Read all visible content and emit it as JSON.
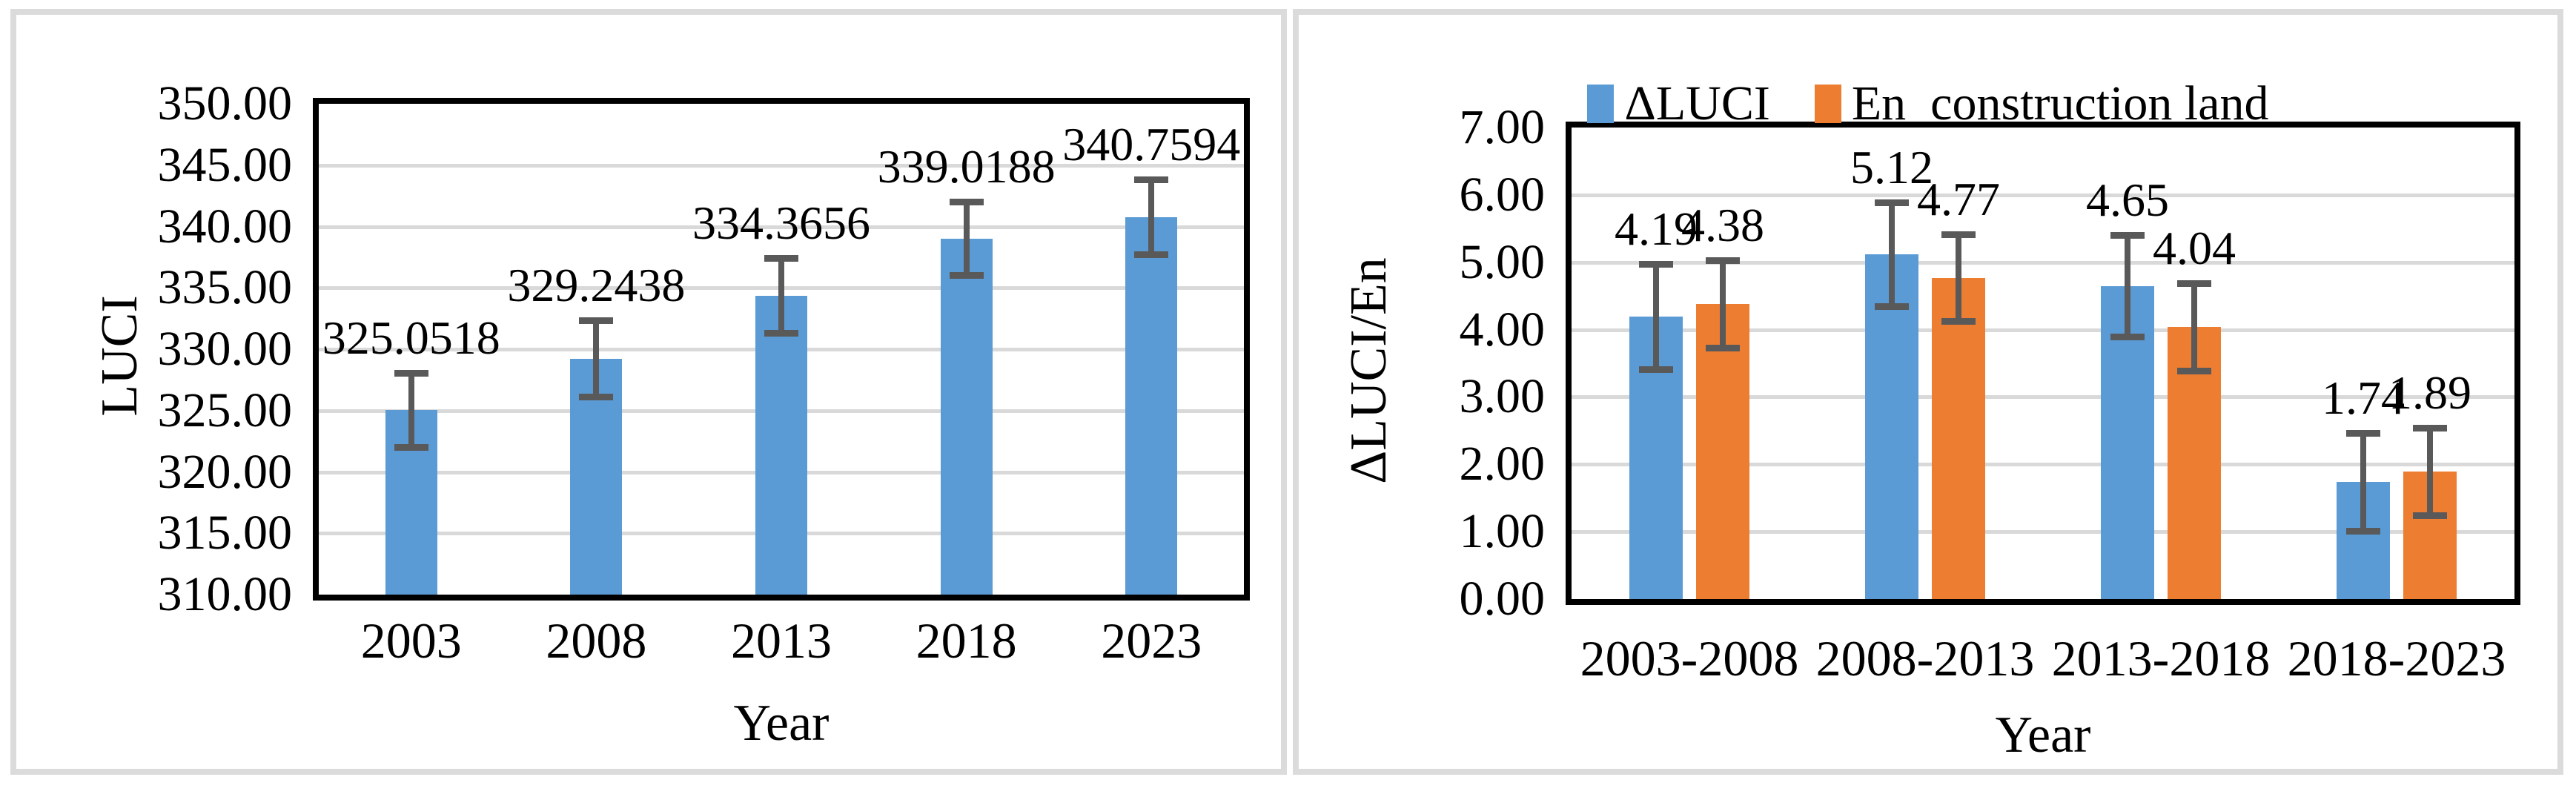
{
  "figure": {
    "background": "#ffffff",
    "panel_border_color": "#dbdbdb"
  },
  "style": {
    "bar_blue": "#5b9bd5",
    "bar_orange": "#ed7d31",
    "error_bar_color": "#595959",
    "gridline_color": "#d9d9d9",
    "axis_color": "#000000"
  },
  "chart_data": [
    {
      "type": "bar",
      "title": "",
      "xlabel": "Year",
      "ylabel": "LUCI",
      "categories": [
        "2003",
        "2008",
        "2013",
        "2018",
        "2023"
      ],
      "y_min": 310,
      "y_max": 350,
      "y_step": 5,
      "y_tick_labels": [
        "310.00",
        "315.00",
        "320.00",
        "325.00",
        "330.00",
        "335.00",
        "340.00",
        "345.00",
        "350.00"
      ],
      "grid": true,
      "legend_position": "none",
      "series": [
        {
          "name": "LUCI",
          "color": "#5b9bd5",
          "values": [
            325.0518,
            329.2438,
            334.3656,
            339.0188,
            340.7594
          ],
          "errors": [
            3.0,
            3.1,
            3.05,
            3.0,
            3.05
          ],
          "data_labels": [
            "325.0518",
            "329.2438",
            "334.3656",
            "339.0188",
            "340.7594"
          ]
        }
      ]
    },
    {
      "type": "bar",
      "title": "",
      "xlabel": "Year",
      "ylabel": "ΔLUCI/En",
      "categories": [
        "2003-2008",
        "2008-2013",
        "2013-2018",
        "2018-2023"
      ],
      "y_min": 0,
      "y_max": 7,
      "y_step": 1,
      "y_tick_labels": [
        "0.00",
        "1.00",
        "2.00",
        "3.00",
        "4.00",
        "5.00",
        "6.00",
        "7.00"
      ],
      "grid": true,
      "legend_position": "top",
      "series": [
        {
          "name": "ΔLUCI",
          "color": "#5b9bd5",
          "values": [
            4.19,
            5.12,
            4.65,
            1.74
          ],
          "errors": [
            0.78,
            0.77,
            0.75,
            0.73
          ],
          "data_labels": [
            "4.19",
            "5.12",
            "4.65",
            "1.74"
          ]
        },
        {
          "name": "En_construction land",
          "color": "#ed7d31",
          "values": [
            4.38,
            4.77,
            4.04,
            1.89
          ],
          "errors": [
            0.65,
            0.64,
            0.65,
            0.65
          ],
          "data_labels": [
            "4.38",
            "4.77",
            "4.04",
            "1.89"
          ]
        }
      ]
    }
  ]
}
